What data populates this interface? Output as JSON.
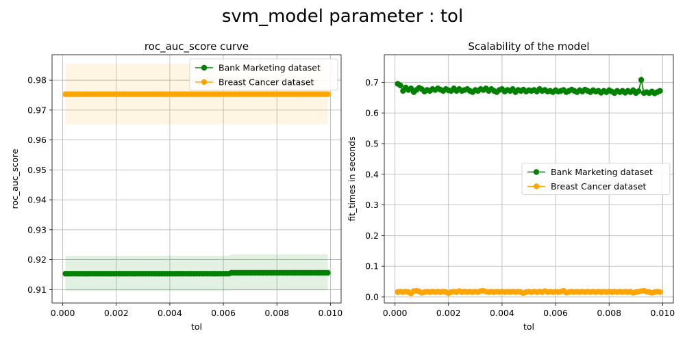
{
  "suptitle": "svm_model parameter : tol",
  "chart_data": [
    {
      "type": "line",
      "title": "roc_auc_score curve",
      "xlabel": "tol",
      "ylabel": "roc_auc_score",
      "xlim": [
        -0.0004,
        0.0104
      ],
      "ylim": [
        0.9055,
        0.9885
      ],
      "xticks": [
        0.0,
        0.002,
        0.004,
        0.006,
        0.008,
        0.01
      ],
      "xtick_labels": [
        "0.000",
        "0.002",
        "0.004",
        "0.006",
        "0.008",
        "0.010"
      ],
      "yticks": [
        0.91,
        0.92,
        0.93,
        0.94,
        0.95,
        0.96,
        0.97,
        0.98
      ],
      "ytick_labels": [
        "0.91",
        "0.92",
        "0.93",
        "0.94",
        "0.95",
        "0.96",
        "0.97",
        "0.98"
      ],
      "grid": true,
      "legend_position": "upper right",
      "x": {
        "start": 0.0001,
        "step": 0.0001,
        "count": 99
      },
      "series": [
        {
          "name": "Bank Marketing dataset",
          "color": "#008000",
          "band_color": "#008000",
          "segments": [
            {
              "from_index": 0,
              "to_index": 61,
              "mean": 0.9153,
              "lower": 0.9095,
              "upper": 0.9213
            },
            {
              "from_index": 62,
              "to_index": 98,
              "mean": 0.9156,
              "lower": 0.9097,
              "upper": 0.9218
            }
          ]
        },
        {
          "name": "Breast Cancer dataset",
          "color": "#FFA500",
          "band_color": "#FFA500",
          "segments": [
            {
              "from_index": 0,
              "to_index": 98,
              "mean": 0.9753,
              "lower": 0.9652,
              "upper": 0.9855
            }
          ]
        }
      ]
    },
    {
      "type": "line",
      "title": "Scalability of the model",
      "xlabel": "tol",
      "ylabel": "fit_times in seconds",
      "xlim": [
        -0.0004,
        0.0104
      ],
      "ylim": [
        -0.02,
        0.79
      ],
      "xticks": [
        0.0,
        0.002,
        0.004,
        0.006,
        0.008,
        0.01
      ],
      "xtick_labels": [
        "0.000",
        "0.002",
        "0.004",
        "0.006",
        "0.008",
        "0.010"
      ],
      "yticks": [
        0.0,
        0.1,
        0.2,
        0.3,
        0.4,
        0.5,
        0.6,
        0.7
      ],
      "ytick_labels": [
        "0.0",
        "0.1",
        "0.2",
        "0.3",
        "0.4",
        "0.5",
        "0.6",
        "0.7"
      ],
      "grid": true,
      "legend_position": "center right",
      "x": {
        "start": 0.0001,
        "step": 0.0001,
        "count": 99
      },
      "series": [
        {
          "name": "Bank Marketing dataset",
          "color": "#008000",
          "band_color": "#008000",
          "values": [
            0.695,
            0.69,
            0.672,
            0.683,
            0.675,
            0.68,
            0.668,
            0.675,
            0.682,
            0.678,
            0.67,
            0.675,
            0.672,
            0.678,
            0.675,
            0.68,
            0.676,
            0.672,
            0.678,
            0.674,
            0.672,
            0.68,
            0.672,
            0.678,
            0.672,
            0.675,
            0.678,
            0.672,
            0.668,
            0.675,
            0.672,
            0.678,
            0.675,
            0.68,
            0.672,
            0.678,
            0.672,
            0.668,
            0.675,
            0.678,
            0.67,
            0.675,
            0.672,
            0.678,
            0.668,
            0.675,
            0.672,
            0.676,
            0.67,
            0.674,
            0.672,
            0.675,
            0.67,
            0.678,
            0.672,
            0.675,
            0.67,
            0.672,
            0.668,
            0.674,
            0.67,
            0.672,
            0.675,
            0.668,
            0.672,
            0.676,
            0.672,
            0.668,
            0.674,
            0.67,
            0.676,
            0.672,
            0.668,
            0.674,
            0.67,
            0.672,
            0.666,
            0.672,
            0.668,
            0.674,
            0.67,
            0.665,
            0.672,
            0.668,
            0.672,
            0.666,
            0.672,
            0.668,
            0.674,
            0.665,
            0.671,
            0.708,
            0.665,
            0.668,
            0.665,
            0.67,
            0.664,
            0.668,
            0.672
          ],
          "band_lower": [
            0.682,
            0.678,
            0.66,
            0.67,
            0.663,
            0.667,
            0.656,
            0.662,
            0.669,
            0.665,
            0.658,
            0.662,
            0.66,
            0.665,
            0.662,
            0.667,
            0.663,
            0.66,
            0.665,
            0.661,
            0.66,
            0.667,
            0.66,
            0.665,
            0.66,
            0.662,
            0.665,
            0.66,
            0.656,
            0.662,
            0.66,
            0.665,
            0.662,
            0.667,
            0.66,
            0.665,
            0.66,
            0.656,
            0.662,
            0.665,
            0.658,
            0.662,
            0.66,
            0.665,
            0.656,
            0.662,
            0.66,
            0.663,
            0.658,
            0.661,
            0.66,
            0.662,
            0.658,
            0.665,
            0.66,
            0.662,
            0.658,
            0.66,
            0.656,
            0.661,
            0.658,
            0.66,
            0.662,
            0.656,
            0.66,
            0.663,
            0.66,
            0.656,
            0.661,
            0.658,
            0.663,
            0.66,
            0.656,
            0.661,
            0.658,
            0.66,
            0.654,
            0.66,
            0.656,
            0.661,
            0.658,
            0.653,
            0.66,
            0.656,
            0.66,
            0.654,
            0.66,
            0.656,
            0.661,
            0.653,
            0.659,
            0.668,
            0.653,
            0.656,
            0.653,
            0.658,
            0.652,
            0.656,
            0.66
          ],
          "band_upper": [
            0.708,
            0.702,
            0.684,
            0.696,
            0.687,
            0.693,
            0.68,
            0.688,
            0.695,
            0.691,
            0.682,
            0.688,
            0.684,
            0.691,
            0.688,
            0.693,
            0.689,
            0.684,
            0.691,
            0.687,
            0.684,
            0.693,
            0.684,
            0.691,
            0.684,
            0.688,
            0.691,
            0.684,
            0.68,
            0.688,
            0.684,
            0.691,
            0.688,
            0.693,
            0.684,
            0.691,
            0.684,
            0.68,
            0.688,
            0.691,
            0.682,
            0.688,
            0.684,
            0.691,
            0.68,
            0.688,
            0.684,
            0.689,
            0.682,
            0.687,
            0.684,
            0.688,
            0.682,
            0.691,
            0.684,
            0.688,
            0.682,
            0.684,
            0.68,
            0.687,
            0.682,
            0.684,
            0.688,
            0.68,
            0.684,
            0.689,
            0.684,
            0.68,
            0.687,
            0.682,
            0.689,
            0.684,
            0.68,
            0.687,
            0.682,
            0.684,
            0.678,
            0.684,
            0.68,
            0.687,
            0.682,
            0.677,
            0.684,
            0.68,
            0.684,
            0.678,
            0.684,
            0.68,
            0.687,
            0.677,
            0.683,
            0.75,
            0.677,
            0.68,
            0.677,
            0.682,
            0.676,
            0.68,
            0.684
          ]
        },
        {
          "name": "Breast Cancer dataset",
          "color": "#FFA500",
          "band_color": "#FFA500",
          "values": [
            0.016,
            0.017,
            0.016,
            0.017,
            0.016,
            0.011,
            0.019,
            0.02,
            0.018,
            0.013,
            0.016,
            0.017,
            0.016,
            0.017,
            0.016,
            0.017,
            0.016,
            0.017,
            0.016,
            0.012,
            0.016,
            0.017,
            0.016,
            0.019,
            0.016,
            0.017,
            0.016,
            0.017,
            0.016,
            0.017,
            0.016,
            0.019,
            0.02,
            0.017,
            0.016,
            0.017,
            0.016,
            0.017,
            0.016,
            0.017,
            0.016,
            0.017,
            0.016,
            0.017,
            0.016,
            0.017,
            0.016,
            0.012,
            0.016,
            0.017,
            0.016,
            0.017,
            0.016,
            0.017,
            0.016,
            0.019,
            0.016,
            0.017,
            0.016,
            0.017,
            0.016,
            0.017,
            0.02,
            0.014,
            0.016,
            0.017,
            0.016,
            0.017,
            0.016,
            0.017,
            0.016,
            0.017,
            0.016,
            0.017,
            0.016,
            0.017,
            0.016,
            0.017,
            0.016,
            0.017,
            0.016,
            0.017,
            0.016,
            0.017,
            0.016,
            0.017,
            0.016,
            0.017,
            0.013,
            0.016,
            0.017,
            0.019,
            0.02,
            0.017,
            0.016,
            0.013,
            0.016,
            0.017,
            0.016
          ],
          "band_lower": null,
          "band_upper": null
        }
      ]
    }
  ]
}
